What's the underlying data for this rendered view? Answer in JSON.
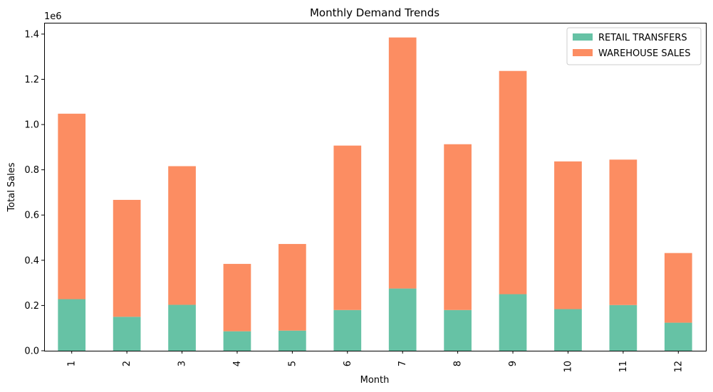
{
  "chart_data": {
    "type": "bar",
    "stacked": true,
    "title": "Monthly Demand Trends",
    "xlabel": "Month",
    "ylabel": "Total Sales",
    "y_offset_label": "1e6",
    "categories": [
      "1",
      "2",
      "3",
      "4",
      "5",
      "6",
      "7",
      "8",
      "9",
      "10",
      "11",
      "12"
    ],
    "series": [
      {
        "name": "RETAIL TRANSFERS",
        "color": "#66c2a5",
        "values": [
          228000,
          150000,
          203000,
          86000,
          89000,
          180000,
          275000,
          180000,
          250000,
          184000,
          202000,
          124000
        ]
      },
      {
        "name": "WAREHOUSE SALES",
        "color": "#fc8d62",
        "values": [
          820000,
          517000,
          613000,
          298000,
          383000,
          727000,
          1110000,
          733000,
          987000,
          653000,
          643000,
          308000
        ]
      }
    ],
    "ylim": [
      0,
      1450000
    ],
    "yticks": [
      0,
      200000,
      400000,
      600000,
      800000,
      1000000,
      1200000,
      1400000
    ],
    "ytick_labels": [
      "0.0",
      "0.2",
      "0.4",
      "0.6",
      "0.8",
      "1.0",
      "1.2",
      "1.4"
    ],
    "grid": false,
    "legend_position": "top-right"
  }
}
